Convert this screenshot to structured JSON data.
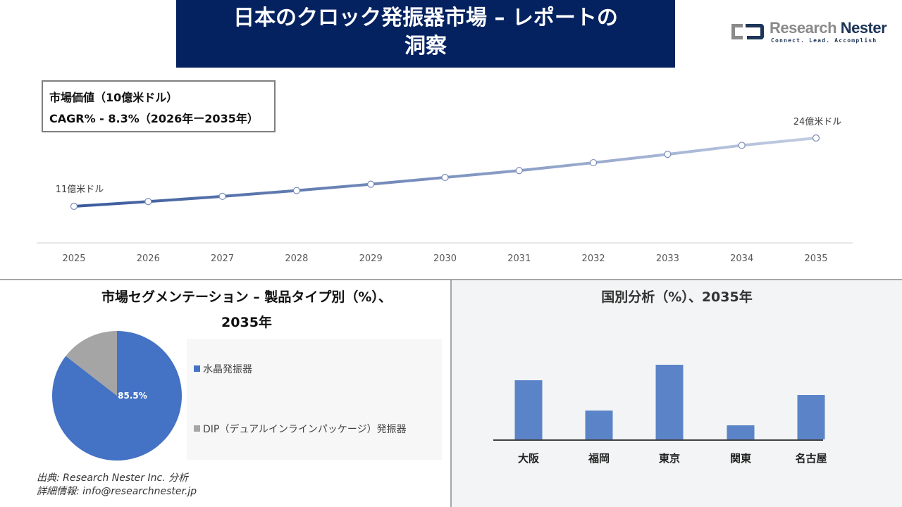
{
  "header": {
    "title_line1": "日本のクロック発振器市場 – レポートの",
    "title_line2": "洞察"
  },
  "logo": {
    "name_part1": "Research",
    "name_part2": "Nester",
    "tagline": "Connect. Lead. Accomplish"
  },
  "kpi": {
    "market_value_label": "市場価値（10億米ドル）",
    "cagr_label": "CAGR% - 8.3%（2026年ー2035年）"
  },
  "colors": {
    "title_bg": "#042260",
    "line_start": "#3a5a9c",
    "line_end": "#c3cde3",
    "pie_primary": "#4472c4",
    "pie_secondary": "#a5a5a5",
    "bar": "#5b84c8",
    "right_panel_bg": "#f3f4f5"
  },
  "segment": {
    "title_line1": "市場セグメンテーション – 製品タイプ別（%）、",
    "title_line2": "2035年",
    "pie_label": "85.5%",
    "legend": [
      {
        "label": "水晶発振器",
        "color": "#4472c4"
      },
      {
        "label": "DIP（デュアルインラインパッケージ）発振器",
        "color": "#a5a5a5"
      }
    ]
  },
  "region": {
    "title": "国別分析（%）、2035年"
  },
  "footer": {
    "source": "出典: Research Nester Inc. 分析",
    "contact": "詳細情報: info@researchnester.jp"
  },
  "chart_data": [
    {
      "type": "line",
      "title": "市場価値（10億米ドル）",
      "x": [
        "2025",
        "2026",
        "2027",
        "2028",
        "2029",
        "2030",
        "2031",
        "2032",
        "2033",
        "2034",
        "2035"
      ],
      "values": [
        1.1,
        1.19,
        1.29,
        1.4,
        1.52,
        1.65,
        1.78,
        1.93,
        2.09,
        2.26,
        2.4
      ],
      "annotations": [
        {
          "x": "2025",
          "text": "11億米ドル"
        },
        {
          "x": "2035",
          "text": "24億米ドル"
        }
      ],
      "xlabel": "",
      "ylabel": "",
      "grid": false,
      "cagr": "8.3%"
    },
    {
      "type": "pie",
      "title": "市場セグメンテーション – 製品タイプ別（%）、2035年",
      "categories": [
        "水晶発振器",
        "DIP（デュアルインラインパッケージ）発振器"
      ],
      "values": [
        85.5,
        14.5
      ],
      "legend_position": "right"
    },
    {
      "type": "bar",
      "title": "国別分析（%）、2035年",
      "categories": [
        "大阪",
        "福岡",
        "東京",
        "関東",
        "名古屋"
      ],
      "values": [
        84,
        41,
        106,
        20,
        63
      ],
      "value_units": "relative bar height (no axis shown)",
      "grid": false
    }
  ]
}
